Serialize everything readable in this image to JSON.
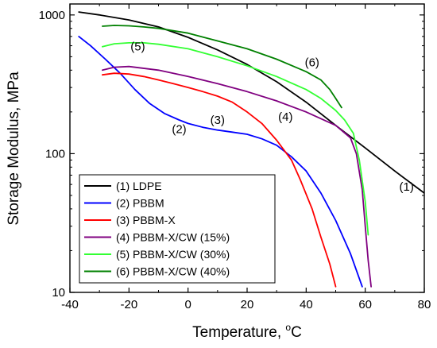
{
  "chart_data": {
    "type": "line",
    "title": "",
    "xlabel": "Temperature, °C",
    "xlabel_main": "Temperature, ",
    "xlabel_sup": "o",
    "xlabel_unit": "C",
    "ylabel": "Storage Modulus, MPa",
    "xlim": [
      -40,
      80
    ],
    "ylim": [
      10,
      1200
    ],
    "yscale": "log",
    "xticks": [
      -40,
      -20,
      0,
      20,
      40,
      60,
      80
    ],
    "xtick_labels": [
      "-40",
      "-20",
      "0",
      "20",
      "40",
      "60",
      "80"
    ],
    "yticks": [
      10,
      100,
      1000
    ],
    "ytick_labels": [
      "10",
      "100",
      "1000"
    ],
    "grid": false,
    "legend_position": "bottom-left",
    "series": [
      {
        "name": "(1) LDPE",
        "label": "(1)",
        "color": "#000000",
        "x": [
          -37,
          -30,
          -20,
          -10,
          0,
          10,
          20,
          30,
          40,
          50,
          60,
          70,
          80
        ],
        "y": [
          1050,
          1000,
          920,
          820,
          690,
          560,
          440,
          330,
          235,
          160,
          110,
          75,
          52
        ]
      },
      {
        "name": "(2) PBBM",
        "label": "(2)",
        "color": "#0000ff",
        "x": [
          -37,
          -33,
          -28,
          -23,
          -18,
          -13,
          -8,
          -3,
          0,
          5,
          10,
          15,
          20,
          25,
          30,
          35,
          40,
          45,
          50,
          55,
          59
        ],
        "y": [
          700,
          600,
          480,
          380,
          290,
          230,
          195,
          175,
          165,
          155,
          148,
          143,
          138,
          128,
          115,
          95,
          75,
          52,
          33,
          19,
          11
        ]
      },
      {
        "name": "(3) PBBM-X",
        "label": "(3)",
        "color": "#ff0000",
        "x": [
          -29,
          -25,
          -20,
          -15,
          -10,
          -5,
          0,
          5,
          10,
          15,
          20,
          25,
          30,
          35,
          38,
          42,
          45,
          48,
          50
        ],
        "y": [
          370,
          380,
          375,
          360,
          340,
          320,
          300,
          280,
          260,
          235,
          200,
          165,
          125,
          90,
          65,
          40,
          25,
          16,
          11
        ]
      },
      {
        "name": "(4) PBBM-X/CW (15%)",
        "label": "(4)",
        "color": "#800080",
        "x": [
          -29,
          -25,
          -20,
          -10,
          0,
          10,
          20,
          30,
          40,
          50,
          55,
          57,
          59,
          60,
          61,
          62
        ],
        "y": [
          400,
          420,
          425,
          400,
          360,
          320,
          280,
          240,
          200,
          160,
          130,
          100,
          55,
          30,
          17,
          11
        ]
      },
      {
        "name": "(5) PBBM-X/CW (30%)",
        "label": "(5)",
        "color": "#33ff33",
        "x": [
          -29,
          -25,
          -20,
          -15,
          -10,
          0,
          10,
          20,
          30,
          40,
          45,
          50,
          53,
          56,
          58,
          60,
          61
        ],
        "y": [
          590,
          620,
          630,
          630,
          615,
          570,
          500,
          430,
          360,
          290,
          250,
          205,
          175,
          140,
          90,
          45,
          26
        ]
      },
      {
        "name": "(6) PBBM-X/CW (40%)",
        "label": "(6)",
        "color": "#008000",
        "x": [
          -29,
          -25,
          -20,
          -15,
          -10,
          0,
          10,
          20,
          30,
          40,
          45,
          48,
          50,
          52
        ],
        "y": [
          830,
          840,
          835,
          820,
          800,
          740,
          650,
          570,
          480,
          390,
          340,
          290,
          250,
          215
        ]
      }
    ],
    "annotations": [
      {
        "text": "(1)",
        "x": 74,
        "y": 57
      },
      {
        "text": "(2)",
        "x": -3,
        "y": 148
      },
      {
        "text": "(3)",
        "x": 10,
        "y": 173
      },
      {
        "text": "(4)",
        "x": 33,
        "y": 182
      },
      {
        "text": "(5)",
        "x": -17,
        "y": 585
      },
      {
        "text": "(6)",
        "x": 42,
        "y": 450
      }
    ]
  }
}
